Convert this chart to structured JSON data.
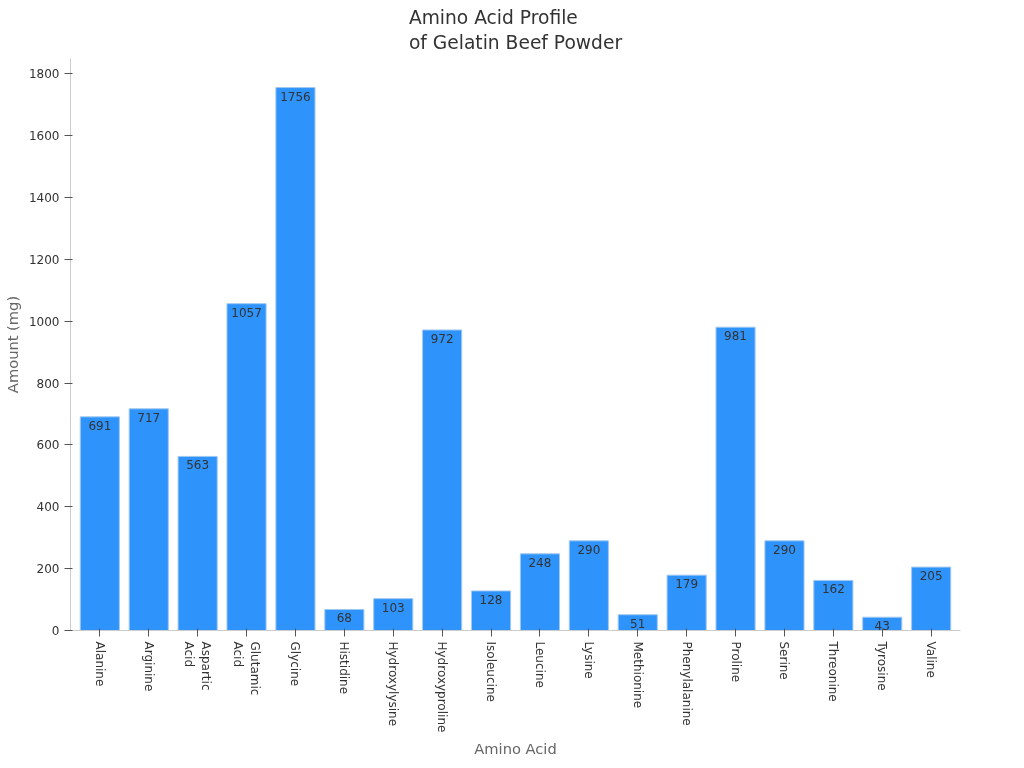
{
  "chart_data": {
    "type": "bar",
    "title": "Amino Acid Profile\nof Gelatin Beef Powder",
    "xlabel": "Amino Acid",
    "ylabel": "Amount (mg)",
    "categories": [
      "Alanine",
      "Arginine",
      "Aspartic Acid",
      "Glutamic Acid",
      "Glycine",
      "Histidine",
      "Hydroxylysine",
      "Hydroxyproline",
      "Isoleucine",
      "Leucine",
      "Lysine",
      "Methionine",
      "Phenylalanine",
      "Proline",
      "Serine",
      "Threonine",
      "Tyrosine",
      "Valine"
    ],
    "values": [
      691,
      717,
      563,
      1057,
      1756,
      68,
      103,
      972,
      128,
      248,
      290,
      51,
      179,
      981,
      290,
      162,
      43,
      205
    ],
    "color": "#2e93fa",
    "ylim": [
      0,
      1850
    ],
    "yticks": [
      0,
      200,
      400,
      600,
      800,
      1000,
      1200,
      1400,
      1600,
      1800
    ],
    "grid": false,
    "data_labels": true
  }
}
